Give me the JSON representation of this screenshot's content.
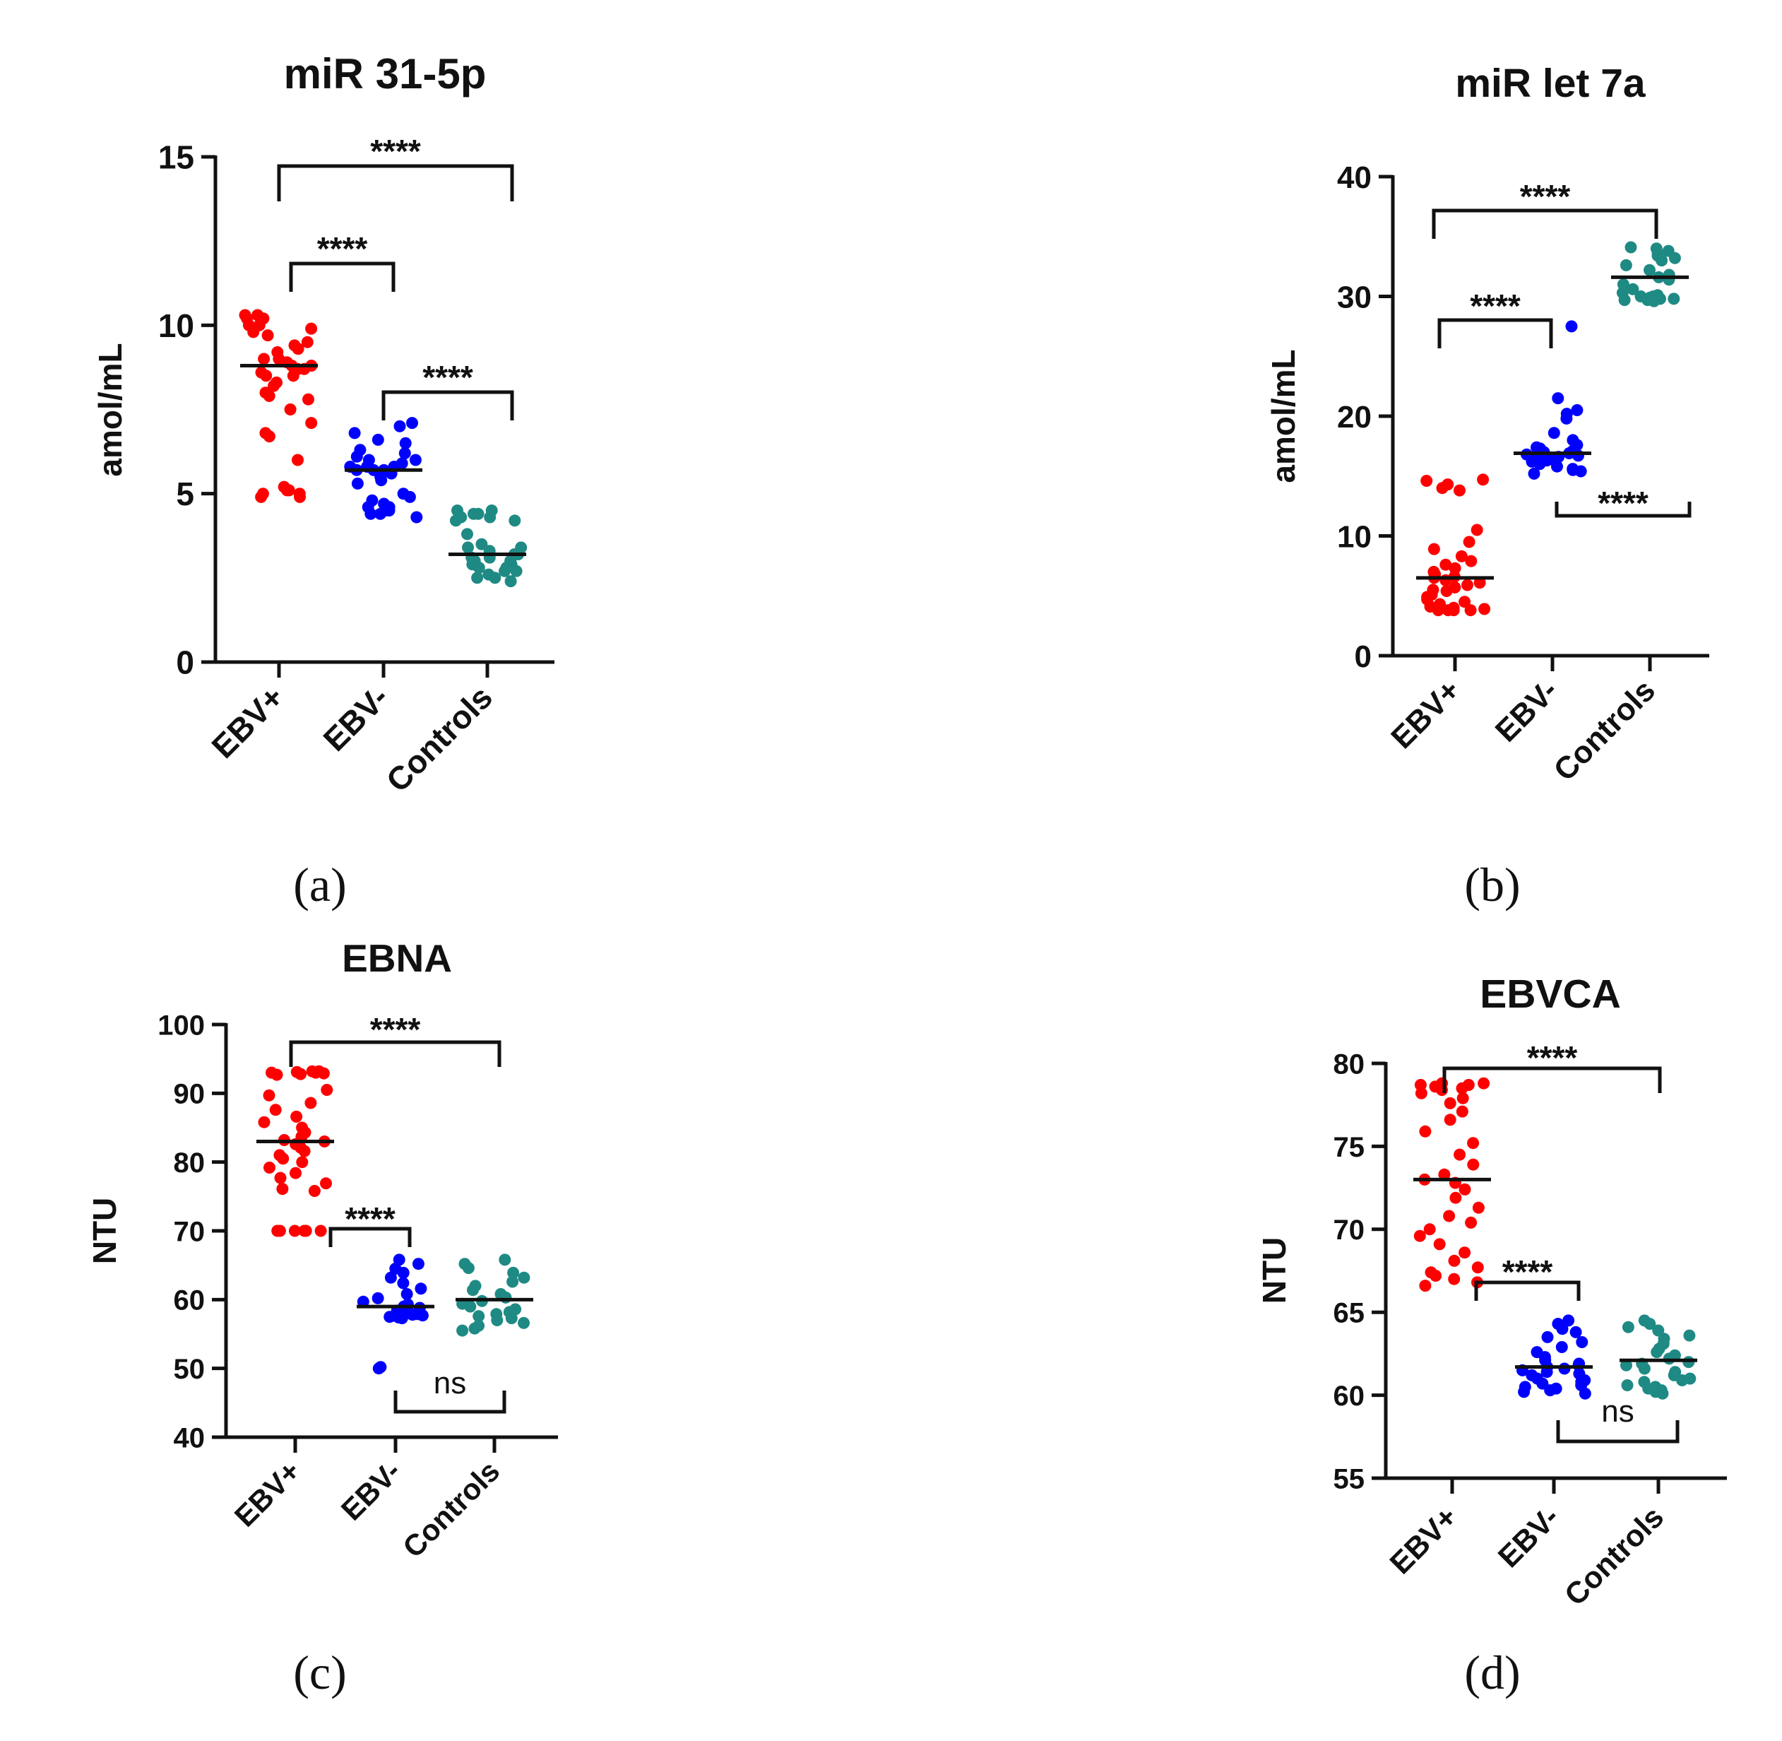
{
  "chart_data": [
    {
      "type": "scatter",
      "panel_label": "(a)",
      "title": "miR 31-5p",
      "ylabel": "amol/mL",
      "xlabel": "",
      "categories": [
        "EBV+",
        "EBV-",
        "Controls"
      ],
      "ylim": [
        0,
        15
      ],
      "yticks": [
        0,
        5,
        10,
        15
      ],
      "colors": [
        "#ff0000",
        "#0000ff",
        "#1f8a84"
      ],
      "series": [
        {
          "values": [
            10.3,
            10.3,
            10.2,
            10.2,
            10.0,
            10.0,
            9.9,
            9.8,
            9.7,
            9.5,
            9.4,
            9.3,
            9.2,
            9.0,
            9.0,
            8.9,
            8.8,
            8.8,
            8.7,
            8.7,
            8.6,
            8.5,
            8.5,
            8.3,
            8.2,
            8.0,
            7.9,
            7.8,
            7.5,
            7.1,
            6.8,
            6.7,
            6.0,
            5.2,
            5.1,
            5.1,
            5.0,
            5.0,
            4.9,
            4.9
          ],
          "median": 8.8
        },
        {
          "values": [
            7.1,
            7.0,
            6.8,
            6.6,
            6.5,
            6.3,
            6.2,
            6.1,
            6.0,
            6.0,
            5.9,
            5.8,
            5.8,
            5.8,
            5.7,
            5.7,
            5.7,
            5.6,
            5.5,
            5.4,
            5.3,
            5.0,
            4.9,
            4.8,
            4.7,
            4.6,
            4.6,
            4.5,
            4.5,
            4.4,
            4.4,
            4.3
          ],
          "median": 5.7
        },
        {
          "values": [
            4.5,
            4.5,
            4.4,
            4.4,
            4.3,
            4.3,
            4.2,
            4.2,
            3.8,
            3.5,
            3.4,
            3.4,
            3.3,
            3.2,
            3.2,
            3.1,
            3.1,
            3.0,
            3.0,
            2.9,
            2.9,
            2.8,
            2.8,
            2.7,
            2.7,
            2.6,
            2.5,
            2.5,
            2.4
          ],
          "median": 3.2
        }
      ],
      "significance": [
        {
          "from": "EBV+",
          "to": "Controls",
          "label": "****"
        },
        {
          "from": "EBV+",
          "to": "EBV-",
          "label": "****"
        },
        {
          "from": "EBV-",
          "to": "Controls",
          "label": "****"
        }
      ]
    },
    {
      "type": "scatter",
      "panel_label": "(b)",
      "title": "miR let 7a",
      "ylabel": "amol/mL",
      "xlabel": "",
      "categories": [
        "EBV+",
        "EBV-",
        "Controls"
      ],
      "ylim": [
        0,
        40
      ],
      "yticks": [
        0,
        10,
        20,
        30,
        40
      ],
      "colors": [
        "#ff0000",
        "#0000ff",
        "#1f8a84"
      ],
      "series": [
        {
          "values": [
            14.7,
            14.6,
            14.3,
            14.0,
            13.8,
            10.5,
            9.5,
            8.9,
            8.3,
            7.9,
            7.6,
            7.3,
            7.0,
            6.8,
            6.6,
            6.5,
            6.3,
            6.1,
            5.9,
            5.7,
            5.5,
            5.4,
            5.1,
            4.9,
            4.7,
            4.5,
            4.3,
            4.1,
            4.0,
            3.9,
            3.8,
            3.8,
            3.8,
            3.8
          ],
          "median": 6.5
        },
        {
          "values": [
            27.5,
            21.5,
            20.5,
            20.2,
            19.8,
            18.6,
            18.0,
            17.6,
            17.4,
            17.3,
            17.1,
            17.0,
            16.9,
            16.8,
            16.7,
            16.6,
            16.5,
            16.4,
            16.3,
            16.2,
            16.0,
            15.8,
            15.6,
            15.5,
            15.4,
            15.2
          ],
          "median": 16.9
        },
        {
          "values": [
            34.1,
            34.0,
            33.8,
            33.6,
            33.4,
            33.2,
            33.0,
            32.6,
            32.2,
            31.8,
            31.6,
            31.4,
            31.0,
            30.6,
            30.3,
            30.1,
            30.0,
            30.0,
            29.9,
            29.8,
            29.8,
            29.7,
            29.7,
            29.6
          ],
          "median": 31.6
        }
      ],
      "significance": [
        {
          "from": "EBV+",
          "to": "Controls",
          "label": "****"
        },
        {
          "from": "EBV+",
          "to": "EBV-",
          "label": "****"
        },
        {
          "from": "EBV-",
          "to": "Controls",
          "label": "****"
        }
      ]
    },
    {
      "type": "scatter",
      "panel_label": "(c)",
      "title": "EBNA",
      "ylabel": "NTU",
      "xlabel": "",
      "categories": [
        "EBV+",
        "EBV-",
        "Controls"
      ],
      "ylim": [
        40,
        100
      ],
      "yticks": [
        40,
        50,
        60,
        70,
        80,
        90,
        100
      ],
      "colors": [
        "#ff0000",
        "#0000ff",
        "#1f8a84"
      ],
      "series": [
        {
          "values": [
            93.2,
            93.2,
            93.1,
            93.0,
            93.0,
            92.9,
            92.8,
            92.7,
            90.5,
            89.7,
            88.6,
            87.6,
            86.6,
            85.8,
            85.0,
            84.3,
            83.7,
            83.2,
            83.0,
            82.6,
            82.1,
            81.6,
            81.0,
            80.5,
            80.0,
            79.2,
            78.4,
            77.7,
            76.9,
            76.1,
            75.8,
            70.0,
            70.0,
            70.0,
            70.0,
            70.0,
            70.0
          ],
          "median": 83.0
        },
        {
          "values": [
            65.8,
            65.2,
            64.5,
            63.9,
            63.2,
            62.4,
            61.6,
            60.8,
            60.2,
            59.7,
            59.3,
            59.0,
            58.8,
            58.6,
            58.4,
            58.2,
            58.0,
            57.9,
            57.8,
            57.7,
            57.6,
            57.5,
            57.4,
            57.3,
            50.2,
            50.0
          ],
          "median": 59.0
        },
        {
          "values": [
            65.8,
            65.2,
            64.6,
            63.9,
            63.2,
            62.6,
            62.0,
            61.4,
            60.8,
            60.3,
            59.8,
            59.4,
            59.0,
            58.6,
            58.2,
            57.9,
            57.6,
            57.3,
            57.0,
            56.6,
            56.2,
            55.8,
            55.5
          ],
          "median": 60.0
        }
      ],
      "significance": [
        {
          "from": "EBV+",
          "to": "Controls",
          "label": "****"
        },
        {
          "from": "EBV+",
          "to": "EBV-",
          "label": "****"
        },
        {
          "from": "EBV-",
          "to": "Controls",
          "label": "ns"
        }
      ]
    },
    {
      "type": "scatter",
      "panel_label": "(d)",
      "title": "EBVCA",
      "ylabel": "NTU",
      "xlabel": "",
      "categories": [
        "EBV+",
        "EBV-",
        "Controls"
      ],
      "ylim": [
        55,
        80
      ],
      "yticks": [
        55,
        60,
        65,
        70,
        75,
        80
      ],
      "colors": [
        "#ff0000",
        "#0000ff",
        "#1f8a84"
      ],
      "series": [
        {
          "values": [
            78.8,
            78.8,
            78.7,
            78.7,
            78.6,
            78.5,
            78.4,
            78.2,
            77.9,
            77.6,
            77.1,
            76.6,
            75.9,
            75.2,
            74.5,
            73.9,
            73.3,
            73.0,
            72.8,
            72.4,
            71.9,
            71.3,
            70.8,
            70.4,
            70.0,
            69.6,
            69.1,
            68.6,
            68.1,
            67.7,
            67.4,
            67.2,
            67.0,
            66.8,
            66.6
          ],
          "median": 73.0
        },
        {
          "values": [
            64.5,
            64.3,
            64.0,
            63.8,
            63.5,
            63.2,
            62.9,
            62.6,
            62.3,
            62.1,
            61.9,
            61.8,
            61.7,
            61.6,
            61.5,
            61.4,
            61.3,
            61.2,
            61.0,
            60.9,
            60.8,
            60.7,
            60.6,
            60.5,
            60.4,
            60.3,
            60.2,
            60.1
          ],
          "median": 61.7
        },
        {
          "values": [
            64.5,
            64.3,
            64.1,
            63.9,
            63.6,
            63.4,
            63.1,
            62.8,
            62.6,
            62.4,
            62.2,
            62.0,
            61.9,
            61.8,
            61.6,
            61.4,
            61.2,
            61.0,
            60.9,
            60.8,
            60.6,
            60.5,
            60.4,
            60.3,
            60.2,
            60.1
          ],
          "median": 62.1
        }
      ],
      "significance": [
        {
          "from": "EBV+",
          "to": "Controls",
          "label": "****"
        },
        {
          "from": "EBV+",
          "to": "EBV-",
          "label": "****"
        },
        {
          "from": "EBV-",
          "to": "Controls",
          "label": "ns"
        }
      ]
    }
  ]
}
